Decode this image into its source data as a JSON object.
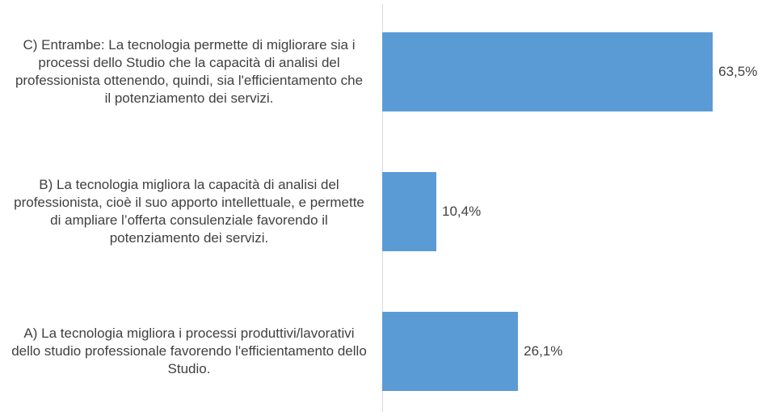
{
  "chart_data": {
    "type": "bar",
    "orientation": "horizontal",
    "categories": [
      "C) Entrambe: La tecnologia permette di migliorare sia i processi dello Studio che la capacità di analisi del professionista ottenendo, quindi, sia l'efficientamento che il potenziamento dei servizi.",
      "B) La tecnologia migliora la capacità di analisi del professionista, cioè il suo apporto intellettuale, e permette di ampliare l’offerta consulenziale favorendo il potenziamento dei servizi.",
      "A) La tecnologia migliora i processi produttivi/lavorativi dello studio professionale favorendo l'efficientamento dello Studio."
    ],
    "values": [
      63.5,
      10.4,
      26.1
    ],
    "value_labels": [
      "63,5%",
      "10,4%",
      "26,1%"
    ],
    "color": "#5b9bd5",
    "xlim": [
      0,
      70
    ]
  }
}
